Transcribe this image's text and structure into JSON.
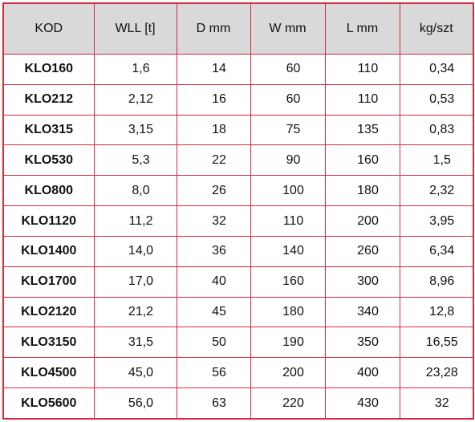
{
  "table": {
    "header": [
      "KOD",
      "WLL [t]",
      "D mm",
      "W mm",
      "L mm",
      "kg/szt"
    ],
    "rows": [
      [
        "KLO160",
        "1,6",
        "14",
        "60",
        "110",
        "0,34"
      ],
      [
        "KLO212",
        "2,12",
        "16",
        "60",
        "110",
        "0,53"
      ],
      [
        "KLO315",
        "3,15",
        "18",
        "75",
        "135",
        "0,83"
      ],
      [
        "KLO530",
        "5,3",
        "22",
        "90",
        "160",
        "1,5"
      ],
      [
        "KLO800",
        "8,0",
        "26",
        "100",
        "180",
        "2,32"
      ],
      [
        "KLO1120",
        "11,2",
        "32",
        "110",
        "200",
        "3,95"
      ],
      [
        "KLO1400",
        "14,0",
        "36",
        "140",
        "260",
        "6,34"
      ],
      [
        "KLO1700",
        "17,0",
        "40",
        "160",
        "300",
        "8,96"
      ],
      [
        "KLO2120",
        "21,2",
        "45",
        "180",
        "340",
        "12,8"
      ],
      [
        "KLO3150",
        "31,5",
        "50",
        "190",
        "350",
        "16,55"
      ],
      [
        "KLO4500",
        "45,0",
        "56",
        "200",
        "400",
        "23,28"
      ],
      [
        "KLO5600",
        "56,0",
        "63",
        "220",
        "430",
        "32"
      ]
    ]
  }
}
